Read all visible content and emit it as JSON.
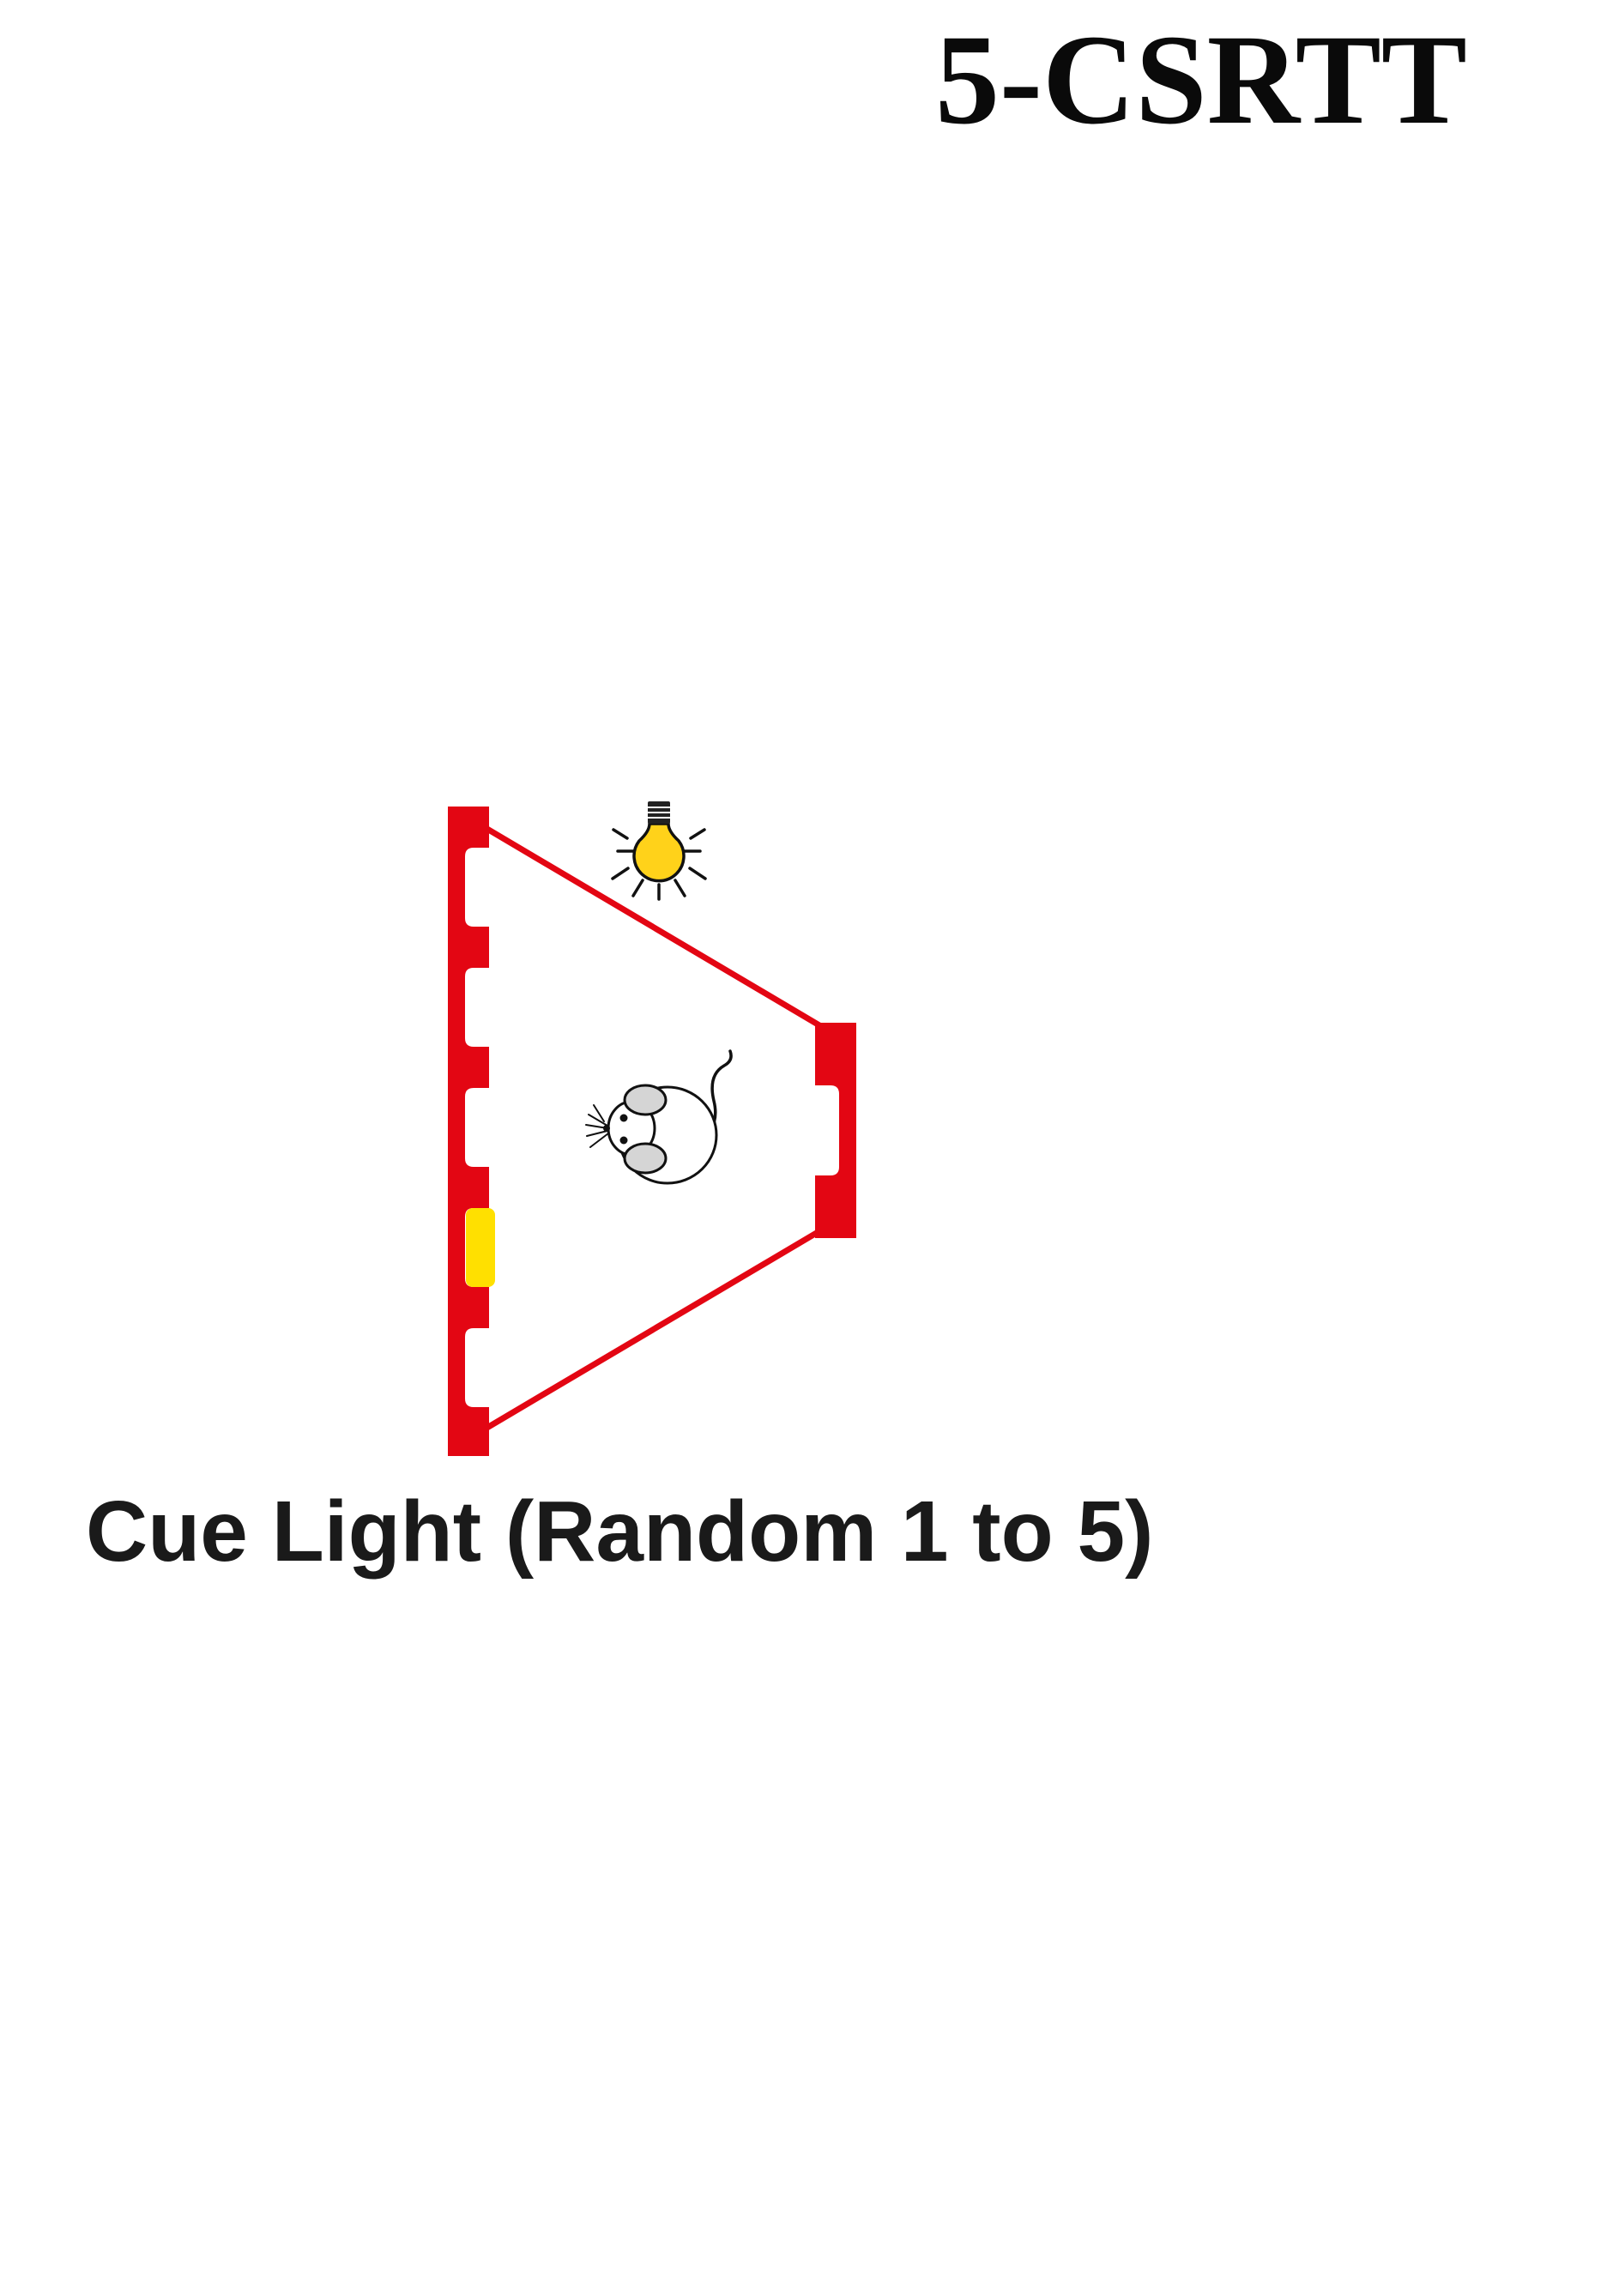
{
  "diagram": {
    "title": "5-CSRTT",
    "caption": "Cue Light (Random 1 to 5)",
    "nose_poke_holes": 5,
    "lit_hole": 4,
    "colors": {
      "chamber": "#e30613",
      "cue_light": "#ffe000",
      "house_light": "#ffd21a",
      "text": "#1a1a1a"
    },
    "icons": [
      "light-bulb-icon",
      "mouse-icon"
    ]
  }
}
